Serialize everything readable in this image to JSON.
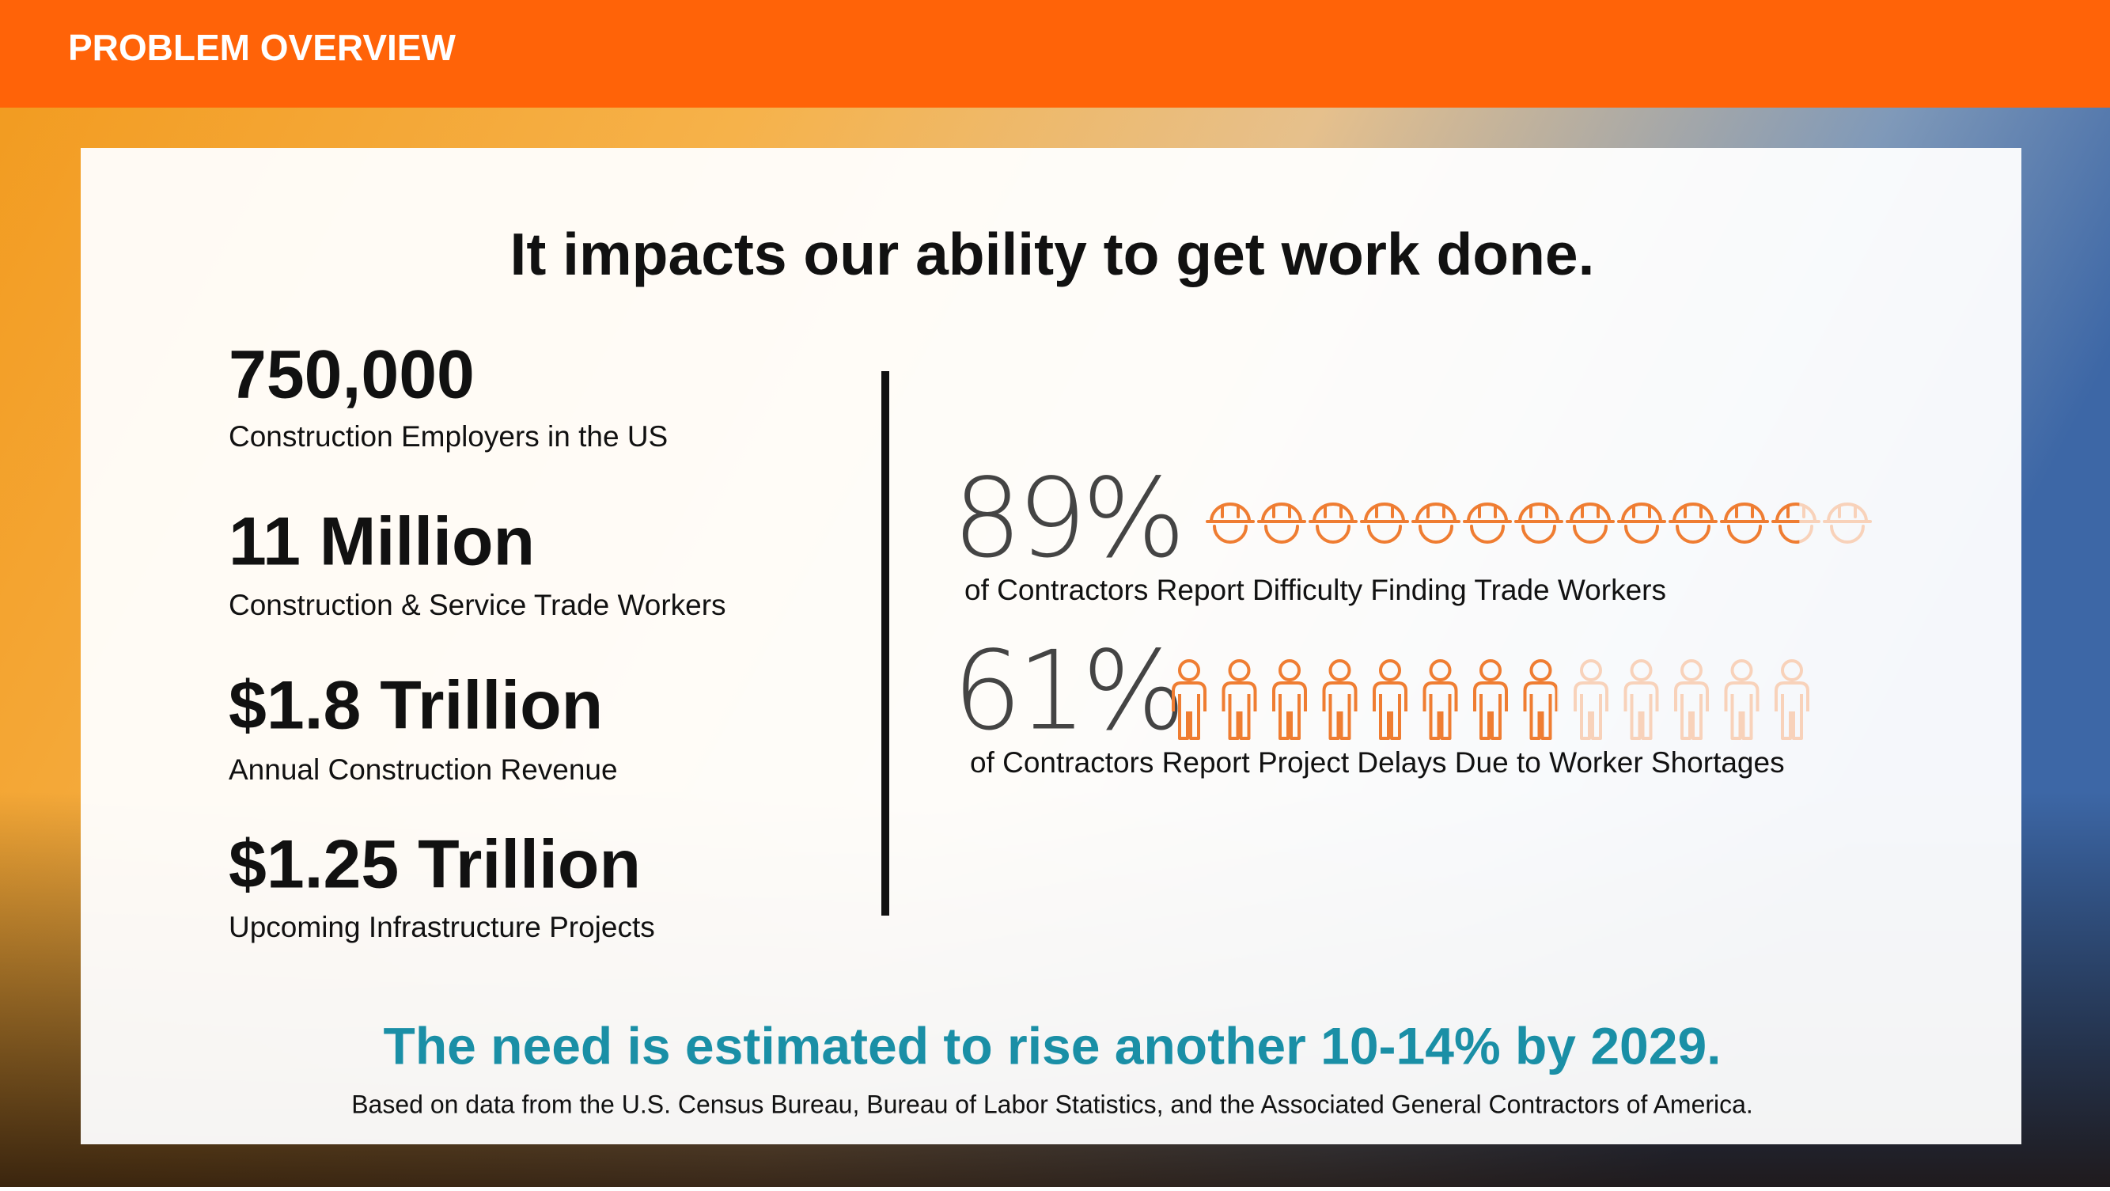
{
  "header": {
    "title": "PROBLEM OVERVIEW"
  },
  "headline": "It impacts our ability to get work done.",
  "stats": [
    {
      "value": "750,000",
      "label": "Construction Employers in the US"
    },
    {
      "value": "11 Million",
      "label": "Construction & Service Trade Workers"
    },
    {
      "value": "$1.8 Trillion",
      "label": "Annual Construction Revenue"
    },
    {
      "value": "$1.25 Trillion",
      "label": "Upcoming Infrastructure Projects"
    }
  ],
  "percent_stats": [
    {
      "value": 89,
      "value_label": "89%",
      "caption": "of Contractors Report Difficulty Finding Trade Workers"
    },
    {
      "value": 61,
      "value_label": "61%",
      "caption": "of Contractors Report Project Delays Due to Worker Shortages"
    }
  ],
  "footer": {
    "highlight": "The need is estimated to rise another 10-14% by 2029.",
    "source": "Based on data from the U.S. Census Bureau, Bureau of Labor Statistics, and the Associated General Contractors of America."
  }
}
